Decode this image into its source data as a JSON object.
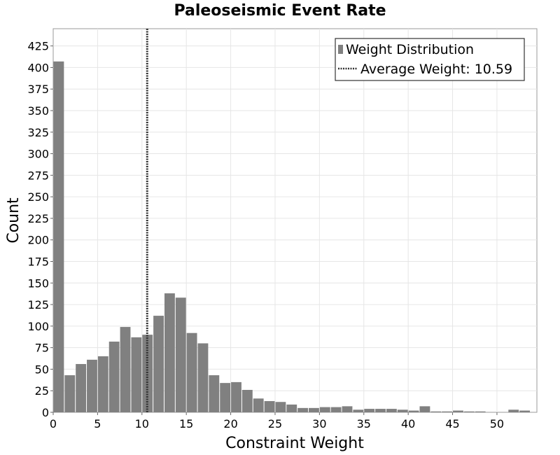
{
  "chart_data": {
    "type": "bar",
    "title": "Paleoseismic Event Rate",
    "xlabel": "Constraint Weight",
    "ylabel": "Count",
    "xlim": [
      0,
      54.5
    ],
    "ylim": [
      0,
      445
    ],
    "xticks": [
      0,
      5,
      10,
      15,
      20,
      25,
      30,
      35,
      40,
      45,
      50
    ],
    "yticks": [
      0,
      25,
      50,
      75,
      100,
      125,
      150,
      175,
      200,
      225,
      250,
      275,
      300,
      325,
      350,
      375,
      400,
      425
    ],
    "grid": true,
    "legend_position": "top-right",
    "bin_width": 1.25,
    "series": [
      {
        "name": "Weight Distribution",
        "bin_starts": [
          0,
          1.25,
          2.5,
          3.75,
          5,
          6.25,
          7.5,
          8.75,
          10,
          11.25,
          12.5,
          13.75,
          15,
          16.25,
          17.5,
          18.75,
          20,
          21.25,
          22.5,
          23.75,
          25,
          26.25,
          27.5,
          28.75,
          30,
          31.25,
          32.5,
          33.75,
          35,
          36.25,
          37.5,
          38.75,
          40,
          41.25,
          42.5,
          43.75,
          45,
          46.25,
          47.5,
          48.75,
          50,
          51.25,
          52.5,
          53.75
        ],
        "values": [
          407,
          43,
          56,
          61,
          65,
          82,
          99,
          87,
          90,
          112,
          138,
          133,
          92,
          80,
          43,
          34,
          35,
          26,
          16,
          13,
          12,
          9,
          5,
          5,
          6,
          6,
          7,
          3,
          4,
          4,
          4,
          3,
          2,
          7,
          1,
          1,
          2,
          1,
          1,
          0,
          0,
          3,
          2,
          0
        ],
        "color": "#808080"
      },
      {
        "name": "Average Weight: 10.59",
        "value": 10.59,
        "style": "dotted-vertical-line",
        "color": "#333333"
      }
    ]
  }
}
